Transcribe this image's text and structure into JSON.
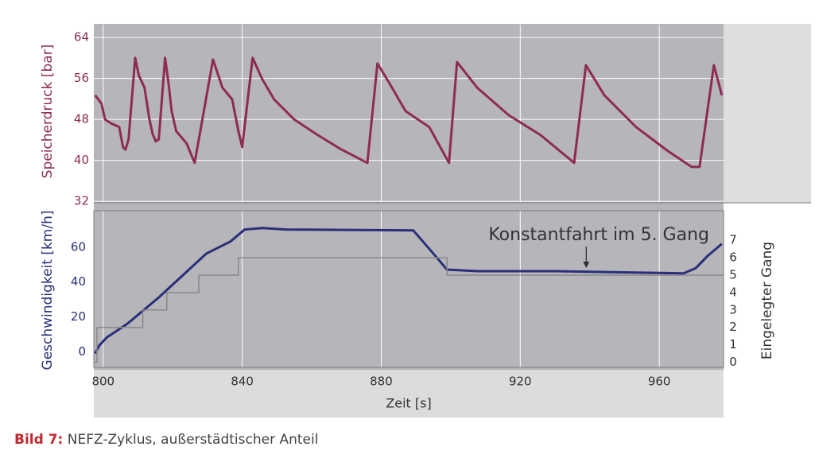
{
  "chart_data": [
    {
      "type": "line",
      "ylabel": "Speicherdruck [bar]",
      "color": "#8e2b52",
      "x": [
        797.7,
        799.5,
        800.5,
        802.3,
        804.6,
        805.7,
        806.4,
        807.3,
        809.2,
        810.3,
        811.9,
        813.3,
        814.2,
        815.1,
        816,
        817.8,
        818.8,
        819.7,
        821,
        824,
        826.3,
        831.6,
        834.3,
        837.1,
        838.9,
        840,
        843,
        845.8,
        849.2,
        854.9,
        861.8,
        868.6,
        876,
        878.9,
        882.4,
        887,
        893.8,
        899.5,
        901.8,
        907.6,
        916.7,
        925.9,
        935.5,
        938.9,
        944.2,
        953.3,
        962.5,
        969.3,
        971.6,
        975.7,
        978
      ],
      "values": [
        52.7,
        51.1,
        48,
        47.2,
        46.5,
        42.6,
        42.1,
        44.1,
        60,
        56.5,
        54.2,
        48,
        45.2,
        43.7,
        44.1,
        60,
        55,
        49.6,
        45.7,
        43.3,
        39.5,
        59.7,
        54.2,
        51.9,
        45.7,
        42.6,
        60,
        55.8,
        51.9,
        48,
        44.9,
        42.1,
        39.5,
        58.9,
        55,
        49.6,
        46.5,
        39.5,
        59.2,
        54.2,
        48.8,
        44.9,
        39.5,
        58.6,
        52.7,
        46.5,
        41.8,
        38.7,
        38.7,
        58.6,
        52.7
      ],
      "xlim": [
        797.3,
        978.5
      ],
      "ylim": [
        31.7,
        66.5
      ],
      "yticks": [
        32,
        40,
        48,
        56,
        64
      ],
      "grid": true
    },
    {
      "type": "line",
      "xlabel": "Zeit [s]",
      "ylabel": "Geschwindigkeit [km/h]",
      "y2label": "Eingelegter Gang",
      "xlim": [
        797.3,
        978.5
      ],
      "xticks": [
        800,
        840,
        880,
        920,
        960
      ],
      "ylim": [
        -9,
        81
      ],
      "yticks": [
        0,
        20,
        40,
        60
      ],
      "y2lim": [
        -0.3,
        8.7
      ],
      "y2ticks": [
        0,
        1,
        2,
        3,
        4,
        5,
        6,
        7
      ],
      "grid": true,
      "series": [
        {
          "color": "#2a2f7a",
          "x": [
            797.7,
            798.9,
            801.1,
            806.9,
            816,
            829.7,
            836.6,
            840.7,
            845.8,
            852.6,
            889.2,
            895,
            898.9,
            907.6,
            930.4,
            967,
            970.5,
            973.9,
            978
          ],
          "values": [
            -1,
            3.7,
            8.3,
            16,
            31.2,
            56.4,
            63.3,
            70.2,
            71.1,
            70.2,
            69.7,
            56.4,
            47.2,
            46.3,
            46.3,
            45,
            48,
            55,
            62
          ]
        },
        {
          "color": "#8a8a8a",
          "axis": "y2",
          "step": true,
          "x": [
            797.3,
            798.2,
            811.4,
            818.3,
            827.5,
            838.9,
            898.9
          ],
          "values": [
            0,
            2,
            3,
            4,
            5,
            6,
            5
          ]
        }
      ],
      "annotations": [
        {
          "text": "Konstantfahrt im 5. Gang",
          "x": 939,
          "y": 46.3
        }
      ]
    }
  ],
  "caption": {
    "label": "Bild 7:",
    "text": "NEFZ-Zyklus, außerstädtischer Anteil"
  }
}
